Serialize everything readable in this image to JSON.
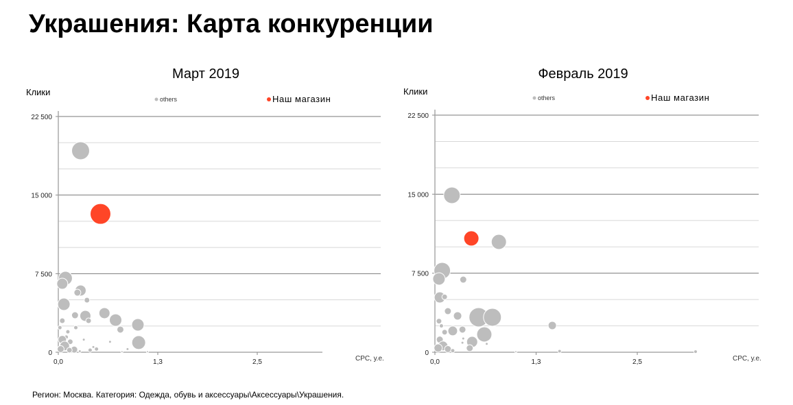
{
  "page": {
    "title": "Украшения: Карта конкуренции",
    "footer": "Регион: Москва. Категория: Одежда, обувь и аксессуары\\Аксессуары\\Украшения."
  },
  "colors": {
    "others": "#bdbdbd",
    "ours": "#ff4527",
    "grid_major": "#7a7a7a",
    "grid_minor": "#d8d8d8"
  },
  "chart_data": [
    {
      "type": "scatter",
      "title": "Март 2019",
      "ylabel": "Клики",
      "xlabel": "CPC, у.е.",
      "legend": [
        "others",
        "Наш магазин"
      ],
      "legend_placement": "top",
      "x_ticks": [
        "0,0",
        "1,3",
        "2,5"
      ],
      "x_tick_values": [
        0,
        1.25,
        2.5
      ],
      "y_ticks": [
        "0",
        "7 500",
        "15 000",
        "22 500"
      ],
      "y_tick_values": [
        0,
        7500,
        15000,
        22500
      ],
      "xlim": [
        0,
        4.0
      ],
      "ylim": [
        0,
        22500
      ],
      "grid": true,
      "series": [
        {
          "name": "others",
          "points": [
            {
              "x": 0.28,
              "y": 19230,
              "size": 13
            },
            {
              "x": 0.09,
              "y": 7060,
              "size": 10
            },
            {
              "x": 0.05,
              "y": 6540,
              "size": 8
            },
            {
              "x": 0.28,
              "y": 5890,
              "size": 8
            },
            {
              "x": 0.24,
              "y": 5690,
              "size": 5
            },
            {
              "x": 0.36,
              "y": 4970,
              "size": 4
            },
            {
              "x": 0.07,
              "y": 4580,
              "size": 9
            },
            {
              "x": 0.58,
              "y": 3730,
              "size": 8
            },
            {
              "x": 0.34,
              "y": 3470,
              "size": 8
            },
            {
              "x": 0.38,
              "y": 3010,
              "size": 4
            },
            {
              "x": 0.21,
              "y": 3530,
              "size": 5
            },
            {
              "x": 0.72,
              "y": 3070,
              "size": 9
            },
            {
              "x": 1.0,
              "y": 2620,
              "size": 9
            },
            {
              "x": 0.05,
              "y": 3010,
              "size": 4
            },
            {
              "x": 0.78,
              "y": 2160,
              "size": 5
            },
            {
              "x": 1.01,
              "y": 920,
              "size": 10
            },
            {
              "x": 0.22,
              "y": 2350,
              "size": 3
            },
            {
              "x": 0.02,
              "y": 2350,
              "size": 3
            },
            {
              "x": 0.1,
              "y": 1450,
              "size": 3
            },
            {
              "x": 0.12,
              "y": 1950,
              "size": 3
            },
            {
              "x": 0.05,
              "y": 1200,
              "size": 6
            },
            {
              "x": 0.15,
              "y": 1000,
              "size": 4
            },
            {
              "x": 0.08,
              "y": 600,
              "size": 7
            },
            {
              "x": 0.03,
              "y": 300,
              "size": 5
            },
            {
              "x": 0.2,
              "y": 250,
              "size": 5
            },
            {
              "x": 0.14,
              "y": 200,
              "size": 4
            },
            {
              "x": 0.4,
              "y": 200,
              "size": 3
            },
            {
              "x": 0.48,
              "y": 300,
              "size": 3
            },
            {
              "x": 0.32,
              "y": 1200,
              "size": 2
            },
            {
              "x": 0.65,
              "y": 1000,
              "size": 2
            },
            {
              "x": 0.87,
              "y": 300,
              "size": 2
            },
            {
              "x": 0.44,
              "y": 500,
              "size": 2
            },
            {
              "x": 0.27,
              "y": 100,
              "size": 2
            },
            {
              "x": 0.8,
              "y": 50,
              "size": 1.5
            },
            {
              "x": 1.12,
              "y": 50,
              "size": 1.5
            }
          ]
        },
        {
          "name": "Наш магазин",
          "points": [
            {
              "x": 0.53,
              "y": 13200,
              "size": 15
            }
          ]
        }
      ]
    },
    {
      "type": "scatter",
      "title": "Февраль 2019",
      "ylabel": "Клики",
      "xlabel": "CPC, у.е.",
      "legend": [
        "others",
        "Наш магазин"
      ],
      "legend_placement": "top",
      "x_ticks": [
        "0,0",
        "1,3",
        "2,5"
      ],
      "x_tick_values": [
        0,
        1.25,
        2.5
      ],
      "y_ticks": [
        "0",
        "7 500",
        "15 000",
        "22 500"
      ],
      "y_tick_values": [
        0,
        7500,
        15000,
        22500
      ],
      "xlim": [
        0,
        4.0
      ],
      "ylim": [
        0,
        22500
      ],
      "grid": true,
      "series": [
        {
          "name": "others",
          "points": [
            {
              "x": 0.21,
              "y": 14890,
              "size": 12
            },
            {
              "x": 0.79,
              "y": 10470,
              "size": 11
            },
            {
              "x": 0.09,
              "y": 7740,
              "size": 12
            },
            {
              "x": 0.05,
              "y": 6960,
              "size": 9
            },
            {
              "x": 0.35,
              "y": 6890,
              "size": 5
            },
            {
              "x": 0.06,
              "y": 5200,
              "size": 8
            },
            {
              "x": 0.12,
              "y": 5250,
              "size": 4
            },
            {
              "x": 0.16,
              "y": 3900,
              "size": 5
            },
            {
              "x": 0.28,
              "y": 3450,
              "size": 6
            },
            {
              "x": 0.54,
              "y": 3320,
              "size": 14
            },
            {
              "x": 0.71,
              "y": 3320,
              "size": 13
            },
            {
              "x": 0.05,
              "y": 2950,
              "size": 4
            },
            {
              "x": 0.22,
              "y": 2020,
              "size": 7
            },
            {
              "x": 0.34,
              "y": 2150,
              "size": 5
            },
            {
              "x": 0.61,
              "y": 1690,
              "size": 11
            },
            {
              "x": 0.46,
              "y": 980,
              "size": 8
            },
            {
              "x": 0.43,
              "y": 390,
              "size": 5
            },
            {
              "x": 1.45,
              "y": 2540,
              "size": 6
            },
            {
              "x": 0.08,
              "y": 2500,
              "size": 3
            },
            {
              "x": 0.12,
              "y": 1900,
              "size": 4
            },
            {
              "x": 0.06,
              "y": 1200,
              "size": 5
            },
            {
              "x": 0.1,
              "y": 600,
              "size": 7
            },
            {
              "x": 0.04,
              "y": 400,
              "size": 6
            },
            {
              "x": 0.16,
              "y": 300,
              "size": 5
            },
            {
              "x": 0.22,
              "y": 150,
              "size": 3
            },
            {
              "x": 0.34,
              "y": 900,
              "size": 2
            },
            {
              "x": 0.35,
              "y": 1300,
              "size": 2
            },
            {
              "x": 0.64,
              "y": 800,
              "size": 2
            },
            {
              "x": 1.0,
              "y": 50,
              "size": 1.5
            },
            {
              "x": 1.54,
              "y": 100,
              "size": 2.5
            },
            {
              "x": 3.22,
              "y": 60,
              "size": 2.5
            }
          ]
        },
        {
          "name": "Наш магазин",
          "points": [
            {
              "x": 0.45,
              "y": 10800,
              "size": 11
            }
          ]
        }
      ]
    }
  ]
}
